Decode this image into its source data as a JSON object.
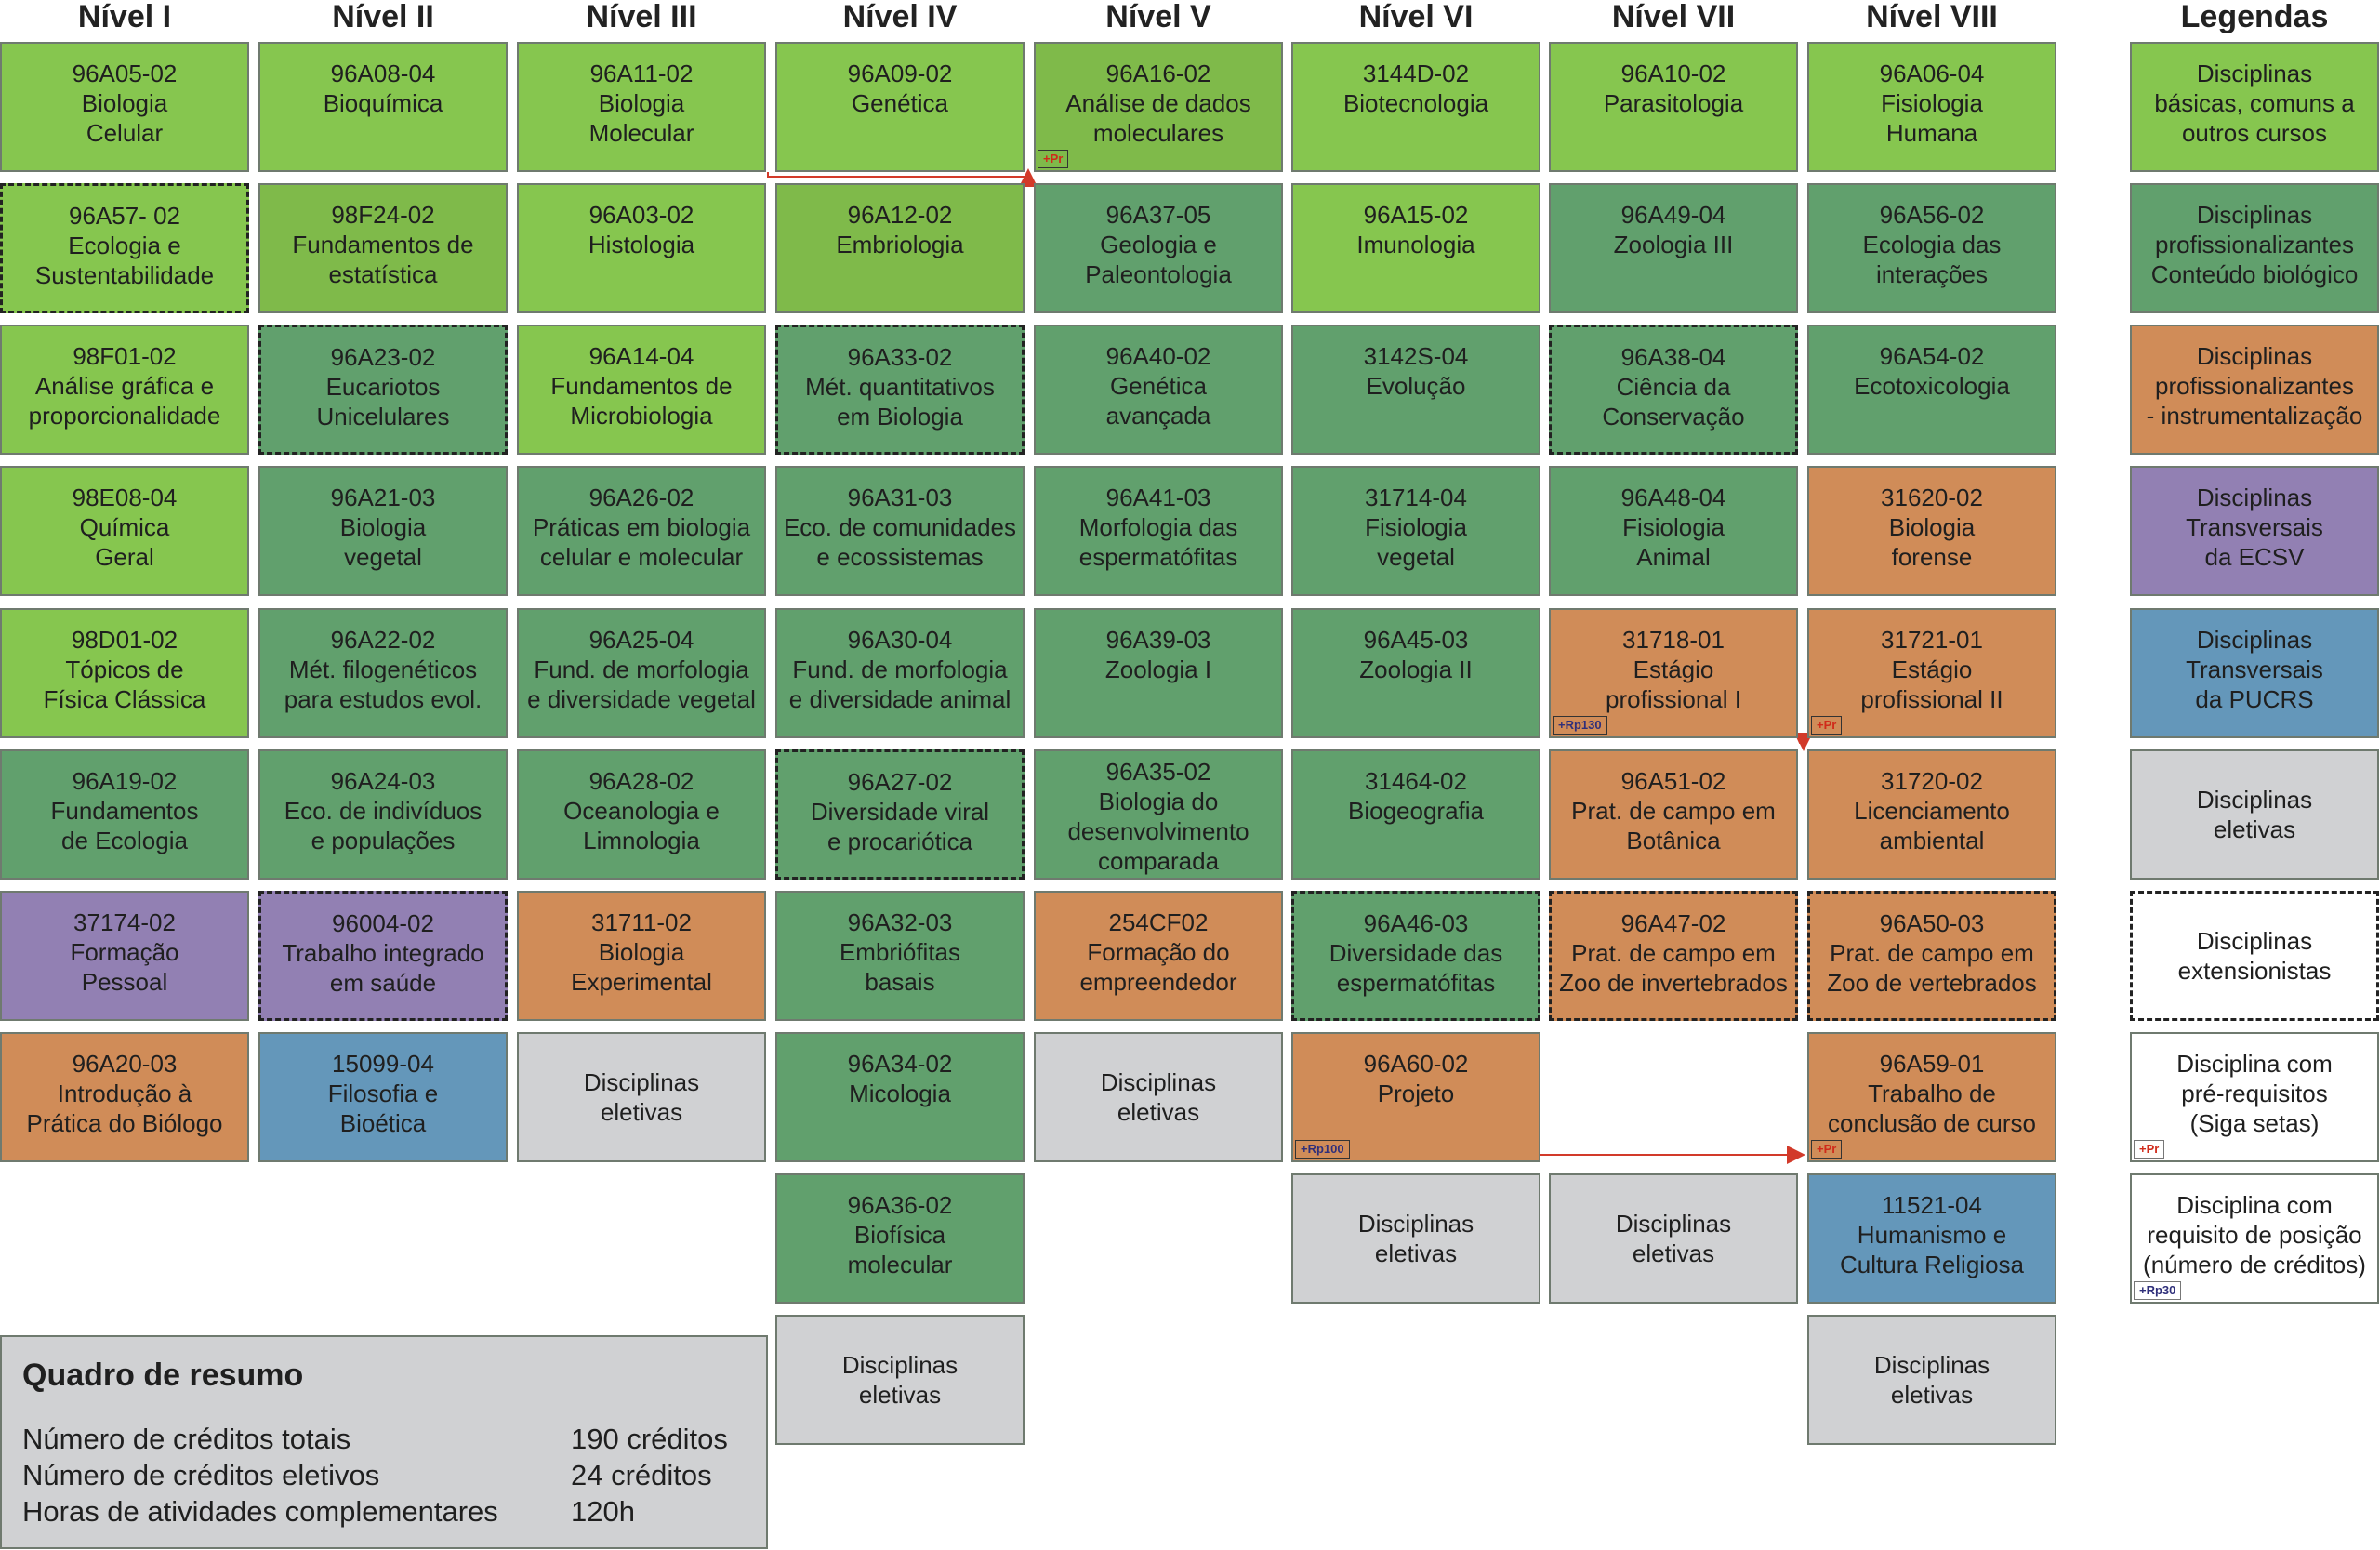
{
  "headers": [
    "Nível I",
    "Nível II",
    "Nível III",
    "Nível IV",
    "Nível V",
    "Nível VI",
    "Nível VII",
    "Nível VIII",
    "Legendas"
  ],
  "courses": [
    {
      "id": "c-1-1",
      "col": 0,
      "row": 0,
      "lines": [
        "96A05-02",
        "Biologia",
        "Celular"
      ],
      "cat": "basic"
    },
    {
      "id": "c-1-2",
      "col": 0,
      "row": 1,
      "lines": [
        "96A57- 02",
        "Ecologia e",
        "Sustentabilidade"
      ],
      "cat": "basic",
      "dashed": true
    },
    {
      "id": "c-1-3",
      "col": 0,
      "row": 2,
      "lines": [
        "98F01-02",
        "Análise gráfica e",
        "proporcionalidade"
      ],
      "cat": "basic"
    },
    {
      "id": "c-1-4",
      "col": 0,
      "row": 3,
      "lines": [
        "98E08-04",
        "Química",
        "Geral"
      ],
      "cat": "basic"
    },
    {
      "id": "c-1-5",
      "col": 0,
      "row": 4,
      "lines": [
        "98D01-02",
        "Tópicos de",
        "Física Clássica"
      ],
      "cat": "basic"
    },
    {
      "id": "c-1-6",
      "col": 0,
      "row": 5,
      "lines": [
        "96A19-02",
        "Fundamentos",
        "de Ecologia"
      ],
      "cat": "prof"
    },
    {
      "id": "c-1-7",
      "col": 0,
      "row": 6,
      "lines": [
        "37174-02",
        "Formação",
        "Pessoal"
      ],
      "cat": "ecsv"
    },
    {
      "id": "c-1-8",
      "col": 0,
      "row": 7,
      "lines": [
        "96A20-03",
        "Introdução à",
        "Prática do Biólogo"
      ],
      "cat": "instr"
    },
    {
      "id": "c-2-1",
      "col": 1,
      "row": 0,
      "lines": [
        "96A08-04",
        "Bioquímica"
      ],
      "cat": "basic"
    },
    {
      "id": "c-2-2",
      "col": 1,
      "row": 1,
      "lines": [
        "98F24-02",
        "Fundamentos de",
        "estatística"
      ],
      "cat": "basic2"
    },
    {
      "id": "c-2-3",
      "col": 1,
      "row": 2,
      "lines": [
        "96A23-02",
        "Eucariotos",
        "Unicelulares"
      ],
      "cat": "prof",
      "dashed": true
    },
    {
      "id": "c-2-4",
      "col": 1,
      "row": 3,
      "lines": [
        "96A21-03",
        "Biologia",
        "vegetal"
      ],
      "cat": "prof"
    },
    {
      "id": "c-2-5",
      "col": 1,
      "row": 4,
      "lines": [
        "96A22-02",
        "Mét. filogenéticos",
        "para estudos evol."
      ],
      "cat": "prof"
    },
    {
      "id": "c-2-6",
      "col": 1,
      "row": 5,
      "lines": [
        "96A24-03",
        "Eco. de indivíduos",
        "e populações"
      ],
      "cat": "prof"
    },
    {
      "id": "c-2-7",
      "col": 1,
      "row": 6,
      "lines": [
        "96004-02",
        "Trabalho integrado",
        "em saúde"
      ],
      "cat": "ecsv",
      "dashed": true
    },
    {
      "id": "c-2-8",
      "col": 1,
      "row": 7,
      "lines": [
        "15099-04",
        "Filosofia e",
        "Bioética"
      ],
      "cat": "pucrs"
    },
    {
      "id": "c-3-1",
      "col": 2,
      "row": 0,
      "lines": [
        "96A11-02",
        "Biologia",
        "Molecular"
      ],
      "cat": "basic"
    },
    {
      "id": "c-3-2",
      "col": 2,
      "row": 1,
      "lines": [
        "96A03-02",
        "Histologia"
      ],
      "cat": "basic"
    },
    {
      "id": "c-3-3",
      "col": 2,
      "row": 2,
      "lines": [
        "96A14-04",
        "Fundamentos de",
        "Microbiologia"
      ],
      "cat": "basic"
    },
    {
      "id": "c-3-4",
      "col": 2,
      "row": 3,
      "lines": [
        "96A26-02",
        "Práticas em biologia",
        "celular e molecular"
      ],
      "cat": "prof"
    },
    {
      "id": "c-3-5",
      "col": 2,
      "row": 4,
      "lines": [
        "96A25-04",
        "Fund. de morfologia",
        "e diversidade vegetal"
      ],
      "cat": "prof"
    },
    {
      "id": "c-3-6",
      "col": 2,
      "row": 5,
      "lines": [
        "96A28-02",
        "Oceanologia e",
        "Limnologia"
      ],
      "cat": "prof"
    },
    {
      "id": "c-3-7",
      "col": 2,
      "row": 6,
      "lines": [
        "31711-02",
        "Biologia",
        "Experimental"
      ],
      "cat": "instr"
    },
    {
      "id": "c-3-8",
      "col": 2,
      "row": 7,
      "lines": [
        "Disciplinas",
        "eletivas"
      ],
      "cat": "elet",
      "center": true
    },
    {
      "id": "c-4-1",
      "col": 3,
      "row": 0,
      "lines": [
        "96A09-02",
        "Genética"
      ],
      "cat": "basic"
    },
    {
      "id": "c-4-2",
      "col": 3,
      "row": 1,
      "lines": [
        "96A12-02",
        "Embriologia"
      ],
      "cat": "basic2"
    },
    {
      "id": "c-4-3",
      "col": 3,
      "row": 2,
      "lines": [
        "96A33-02",
        "Mét. quantitativos",
        "em Biologia"
      ],
      "cat": "prof",
      "dashed": true
    },
    {
      "id": "c-4-4",
      "col": 3,
      "row": 3,
      "lines": [
        "96A31-03",
        "Eco. de comunidades",
        "e ecossistemas"
      ],
      "cat": "prof"
    },
    {
      "id": "c-4-5",
      "col": 3,
      "row": 4,
      "lines": [
        "96A30-04",
        "Fund. de morfologia",
        "e diversidade animal"
      ],
      "cat": "prof"
    },
    {
      "id": "c-4-6",
      "col": 3,
      "row": 5,
      "lines": [
        "96A27-02",
        "Diversidade viral",
        "e procariótica"
      ],
      "cat": "prof",
      "dashed": true
    },
    {
      "id": "c-4-7",
      "col": 3,
      "row": 6,
      "lines": [
        "96A32-03",
        "Embriófitas",
        "basais"
      ],
      "cat": "prof"
    },
    {
      "id": "c-4-8",
      "col": 3,
      "row": 7,
      "lines": [
        "96A34-02",
        "Micologia"
      ],
      "cat": "prof"
    },
    {
      "id": "c-4-9",
      "col": 3,
      "row": 8,
      "lines": [
        "96A36-02",
        "Biofísica",
        "molecular"
      ],
      "cat": "prof"
    },
    {
      "id": "c-4-10",
      "col": 3,
      "row": 9,
      "lines": [
        "Disciplinas",
        "eletivas"
      ],
      "cat": "elet",
      "center": true
    },
    {
      "id": "c-5-1",
      "col": 4,
      "row": 0,
      "lines": [
        "96A16-02",
        "Análise de dados",
        "moleculares"
      ],
      "cat": "basic2",
      "tag": "+Pr",
      "tagType": "pr",
      "tagFill": true
    },
    {
      "id": "c-5-2",
      "col": 4,
      "row": 1,
      "lines": [
        "96A37-05",
        "Geologia e",
        "Paleontologia"
      ],
      "cat": "prof"
    },
    {
      "id": "c-5-3",
      "col": 4,
      "row": 2,
      "lines": [
        "96A40-02",
        "Genética",
        "avançada"
      ],
      "cat": "prof"
    },
    {
      "id": "c-5-4",
      "col": 4,
      "row": 3,
      "lines": [
        "96A41-03",
        "Morfologia das",
        "espermatófitas"
      ],
      "cat": "prof"
    },
    {
      "id": "c-5-5",
      "col": 4,
      "row": 4,
      "lines": [
        "96A39-03",
        "Zoologia I"
      ],
      "cat": "prof"
    },
    {
      "id": "c-5-6",
      "col": 4,
      "row": 5,
      "lines": [
        "96A35-02",
        "Biologia do",
        "desenvolvimento",
        "comparada"
      ],
      "cat": "prof",
      "tight": true
    },
    {
      "id": "c-5-7",
      "col": 4,
      "row": 6,
      "lines": [
        "254CF02",
        "Formação do",
        "empreendedor"
      ],
      "cat": "instr"
    },
    {
      "id": "c-5-8",
      "col": 4,
      "row": 7,
      "lines": [
        "Disciplinas",
        "eletivas"
      ],
      "cat": "elet",
      "center": true
    },
    {
      "id": "c-6-1",
      "col": 5,
      "row": 0,
      "lines": [
        "3144D-02",
        "Biotecnologia"
      ],
      "cat": "basic"
    },
    {
      "id": "c-6-2",
      "col": 5,
      "row": 1,
      "lines": [
        "96A15-02",
        "Imunologia"
      ],
      "cat": "basic"
    },
    {
      "id": "c-6-3",
      "col": 5,
      "row": 2,
      "lines": [
        "3142S-04",
        "Evolução"
      ],
      "cat": "prof"
    },
    {
      "id": "c-6-4",
      "col": 5,
      "row": 3,
      "lines": [
        "31714-04",
        "Fisiologia",
        "vegetal"
      ],
      "cat": "prof"
    },
    {
      "id": "c-6-5",
      "col": 5,
      "row": 4,
      "lines": [
        "96A45-03",
        "Zoologia II"
      ],
      "cat": "prof"
    },
    {
      "id": "c-6-6",
      "col": 5,
      "row": 5,
      "lines": [
        "31464-02",
        "Biogeografia"
      ],
      "cat": "prof"
    },
    {
      "id": "c-6-7",
      "col": 5,
      "row": 6,
      "lines": [
        "96A46-03",
        "Diversidade das",
        "espermatófitas"
      ],
      "cat": "prof",
      "dashed": true
    },
    {
      "id": "c-6-8",
      "col": 5,
      "row": 7,
      "lines": [
        "96A60-02",
        "Projeto"
      ],
      "cat": "instr",
      "tag": "+Rp100",
      "tagType": "rp",
      "tagFill": true
    },
    {
      "id": "c-6-9",
      "col": 5,
      "row": 8,
      "lines": [
        "Disciplinas",
        "eletivas"
      ],
      "cat": "elet",
      "center": true
    },
    {
      "id": "c-7-1",
      "col": 6,
      "row": 0,
      "lines": [
        "96A10-02",
        "Parasitologia"
      ],
      "cat": "basic"
    },
    {
      "id": "c-7-2",
      "col": 6,
      "row": 1,
      "lines": [
        "96A49-04",
        "Zoologia III"
      ],
      "cat": "prof"
    },
    {
      "id": "c-7-3",
      "col": 6,
      "row": 2,
      "lines": [
        "96A38-04",
        "Ciência da",
        "Conservação"
      ],
      "cat": "prof",
      "dashed": true
    },
    {
      "id": "c-7-4",
      "col": 6,
      "row": 3,
      "lines": [
        "96A48-04",
        "Fisiologia",
        "Animal"
      ],
      "cat": "prof"
    },
    {
      "id": "c-7-5",
      "col": 6,
      "row": 4,
      "lines": [
        "31718-01",
        "Estágio",
        "profissional I"
      ],
      "cat": "instr",
      "tag": "+Rp130",
      "tagType": "rp",
      "tagFill": true
    },
    {
      "id": "c-7-6",
      "col": 6,
      "row": 5,
      "lines": [
        "96A51-02",
        "Prat. de campo em",
        "Botânica"
      ],
      "cat": "instr"
    },
    {
      "id": "c-7-7",
      "col": 6,
      "row": 6,
      "lines": [
        "96A47-02",
        "Prat. de campo em",
        "Zoo de invertebrados"
      ],
      "cat": "instr",
      "dashed": true
    },
    {
      "id": "c-7-8",
      "col": 6,
      "row": 8,
      "lines": [
        "Disciplinas",
        "eletivas"
      ],
      "cat": "elet",
      "center": true
    },
    {
      "id": "c-8-1",
      "col": 7,
      "row": 0,
      "lines": [
        "96A06-04",
        "Fisiologia",
        "Humana"
      ],
      "cat": "basic"
    },
    {
      "id": "c-8-2",
      "col": 7,
      "row": 1,
      "lines": [
        "96A56-02",
        "Ecologia das",
        "interações"
      ],
      "cat": "prof"
    },
    {
      "id": "c-8-3",
      "col": 7,
      "row": 2,
      "lines": [
        "96A54-02",
        "Ecotoxicologia"
      ],
      "cat": "prof"
    },
    {
      "id": "c-8-4",
      "col": 7,
      "row": 3,
      "lines": [
        "31620-02",
        "Biologia",
        "forense"
      ],
      "cat": "instr"
    },
    {
      "id": "c-8-5",
      "col": 7,
      "row": 4,
      "lines": [
        "31721-01",
        "Estágio",
        "profissional II"
      ],
      "cat": "instr",
      "tag": "+Pr",
      "tagType": "pr",
      "tagFill": true
    },
    {
      "id": "c-8-6",
      "col": 7,
      "row": 5,
      "lines": [
        "31720-02",
        "Licenciamento",
        "ambiental"
      ],
      "cat": "instr"
    },
    {
      "id": "c-8-7",
      "col": 7,
      "row": 6,
      "lines": [
        "96A50-03",
        "Prat. de campo em",
        "Zoo de vertebrados"
      ],
      "cat": "instr",
      "dashed": true
    },
    {
      "id": "c-8-8",
      "col": 7,
      "row": 7,
      "lines": [
        "96A59-01",
        "Trabalho de",
        "conclusão de curso"
      ],
      "cat": "instr",
      "tag": "+Pr",
      "tagType": "pr",
      "tagFill": true
    },
    {
      "id": "c-8-9",
      "col": 7,
      "row": 8,
      "lines": [
        "11521-04",
        "Humanismo e",
        "Cultura Religiosa"
      ],
      "cat": "pucrs"
    },
    {
      "id": "c-8-10",
      "col": 7,
      "row": 9,
      "lines": [
        "Disciplinas",
        "eletivas"
      ],
      "cat": "elet",
      "center": true
    }
  ],
  "legend": [
    {
      "id": "lg-1",
      "row": 0,
      "lines": [
        "Disciplinas",
        "básicas, comuns a",
        "outros cursos"
      ],
      "cat": "basic"
    },
    {
      "id": "lg-2",
      "row": 1,
      "lines": [
        "Disciplinas",
        "profissionalizantes",
        "Conteúdo biológico"
      ],
      "cat": "prof"
    },
    {
      "id": "lg-3",
      "row": 2,
      "lines": [
        "Disciplinas",
        "profissionalizantes",
        "- instrumentalização"
      ],
      "cat": "instr"
    },
    {
      "id": "lg-4",
      "row": 3,
      "lines": [
        "Disciplinas",
        "Transversais",
        "da ECSV"
      ],
      "cat": "ecsv"
    },
    {
      "id": "lg-5",
      "row": 4,
      "lines": [
        "Disciplinas",
        "Transversais",
        "da PUCRS"
      ],
      "cat": "pucrs"
    },
    {
      "id": "lg-6",
      "row": 5,
      "lines": [
        "Disciplinas",
        "eletivas"
      ],
      "cat": "elet",
      "center": true
    },
    {
      "id": "lg-7",
      "row": 6,
      "lines": [
        "Disciplinas",
        "extensionistas"
      ],
      "cat": "ext",
      "center": true,
      "dashed": true
    },
    {
      "id": "lg-8",
      "row": 7,
      "lines": [
        "Disciplina com",
        "pré-requisitos",
        "(Siga setas)"
      ],
      "cat": "white",
      "tag": "+Pr",
      "tagType": "pr"
    },
    {
      "id": "lg-9",
      "row": 8,
      "lines": [
        "Disciplina com",
        "requisito de posição",
        "(número de créditos)"
      ],
      "cat": "white",
      "tag": "+Rp30",
      "tagType": "rp"
    }
  ],
  "colors": {
    "basic": "#86c64f",
    "basic2": "#7fba4a",
    "prof": "#61a06d",
    "instr": "#d08c58",
    "ecsv": "#9280b3",
    "pucrs": "#6497ba",
    "elet": "#d0d1d3",
    "arrow": "#d23a2a"
  },
  "summary": {
    "title": "Quadro de resumo",
    "rows": [
      {
        "label": "Número de créditos totais",
        "value": "190 créditos"
      },
      {
        "label": "Número de créditos eletivos",
        "value": "24 créditos"
      },
      {
        "label": "Horas de atividades complementares",
        "value": "120h"
      }
    ]
  }
}
